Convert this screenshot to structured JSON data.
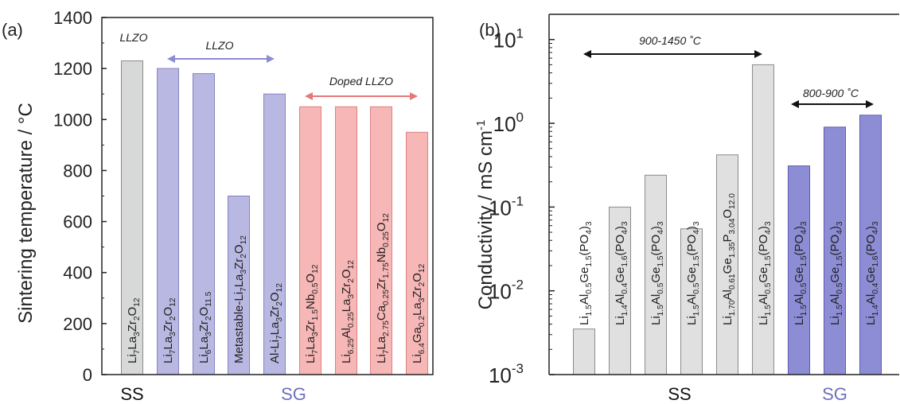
{
  "colors": {
    "gray_fill": "#d7d8d8",
    "gray_stroke": "#8a8b8b",
    "purple_fill": "#b9b8e2",
    "purple_stroke": "#8683c1",
    "red_fill": "#f8b7b7",
    "red_stroke": "#dc8181",
    "gray_b_fill": "#e0e0e0",
    "blue_b_fill": "#8d8dd6",
    "blue_b_stroke": "#5b5bb0",
    "lilac_arrow": "#8c8cd4",
    "red_arrow": "#e57878",
    "sg_text": "#6f6ebf"
  },
  "chart_data": [
    {
      "panel": "(a)",
      "type": "bar",
      "ylabel": "Sintering temperature / °C",
      "ylim": [
        0,
        1400
      ],
      "yticks": [
        "0",
        "200",
        "400",
        "600",
        "800",
        "1000",
        "1200",
        "1400"
      ],
      "categories": [
        {
          "base": "Li",
          "parts": [
            [
              "7",
              1
            ],
            [
              "La",
              0
            ],
            [
              "3",
              1
            ],
            [
              "Zr",
              0
            ],
            [
              "2",
              1
            ],
            [
              "O",
              0
            ],
            [
              "12",
              1
            ]
          ]
        },
        {
          "base": "Li",
          "parts": [
            [
              "7",
              1
            ],
            [
              "La",
              0
            ],
            [
              "3",
              1
            ],
            [
              "Zr",
              0
            ],
            [
              "2",
              1
            ],
            [
              "O",
              0
            ],
            [
              "12",
              1
            ]
          ]
        },
        {
          "base": "Li",
          "parts": [
            [
              "6",
              1
            ],
            [
              "La",
              0
            ],
            [
              "3",
              1
            ],
            [
              "Zr",
              0
            ],
            [
              "2",
              1
            ],
            [
              "O",
              0
            ],
            [
              "11.5",
              1
            ]
          ]
        },
        {
          "base": "Metastable-Li",
          "parts": [
            [
              "7",
              1
            ],
            [
              "La",
              0
            ],
            [
              "3",
              1
            ],
            [
              "Zr",
              0
            ],
            [
              "2",
              1
            ],
            [
              "O",
              0
            ],
            [
              "12",
              1
            ]
          ]
        },
        {
          "base": "Al-Li",
          "parts": [
            [
              "7",
              1
            ],
            [
              "La",
              0
            ],
            [
              "3",
              1
            ],
            [
              "Zr",
              0
            ],
            [
              "2",
              1
            ],
            [
              "O",
              0
            ],
            [
              "12",
              1
            ]
          ]
        },
        {
          "base": "Li",
          "parts": [
            [
              "7",
              1
            ],
            [
              "La",
              0
            ],
            [
              "3",
              1
            ],
            [
              "Zr",
              0
            ],
            [
              "1.5",
              1
            ],
            [
              "Nb",
              0
            ],
            [
              "0.5",
              1
            ],
            [
              "O",
              0
            ],
            [
              "12",
              1
            ]
          ]
        },
        {
          "base": "Li",
          "parts": [
            [
              "6.25",
              1
            ],
            [
              "Al",
              0
            ],
            [
              "0.25",
              1
            ],
            [
              "La",
              0
            ],
            [
              "3",
              1
            ],
            [
              "Zr",
              0
            ],
            [
              "2",
              1
            ],
            [
              "O",
              0
            ],
            [
              "12",
              1
            ]
          ]
        },
        {
          "base": "Li",
          "parts": [
            [
              "7",
              1
            ],
            [
              "La",
              0
            ],
            [
              "2.75",
              1
            ],
            [
              "Ca",
              0
            ],
            [
              "0.25",
              1
            ],
            [
              "Zr",
              0
            ],
            [
              "1.75",
              1
            ],
            [
              "Nb",
              0
            ],
            [
              "0.25",
              1
            ],
            [
              "O",
              0
            ],
            [
              "12",
              1
            ]
          ]
        },
        {
          "base": "Li",
          "parts": [
            [
              "6.4",
              1
            ],
            [
              "Ga",
              0
            ],
            [
              "0.2",
              1
            ],
            [
              "La",
              0
            ],
            [
              "3",
              1
            ],
            [
              "Zr",
              0
            ],
            [
              "2",
              1
            ],
            [
              "O",
              0
            ],
            [
              "12",
              1
            ]
          ]
        }
      ],
      "values": [
        1230,
        1200,
        1180,
        700,
        1100,
        1050,
        1050,
        1050,
        950
      ],
      "groups": [
        "gray",
        "purple",
        "purple",
        "purple",
        "purple",
        "red",
        "red",
        "red",
        "red"
      ],
      "annotations": {
        "top_label_1": "LLZO",
        "arrow_label_1": "LLZO",
        "arrow_label_2": "Doped LLZO"
      },
      "x_groups": [
        "SS",
        "SG"
      ]
    },
    {
      "panel": "(b)",
      "type": "bar",
      "yscale": "log",
      "ylabel": "Conductivity / mS cm",
      "ylabel_sup": "-1",
      "ylim": [
        0.001,
        20
      ],
      "yticks": [
        {
          "base": "10",
          "exp": "-3"
        },
        {
          "base": "10",
          "exp": "-2"
        },
        {
          "base": "10",
          "exp": "-1"
        },
        {
          "base": "10",
          "exp": "0"
        },
        {
          "base": "10",
          "exp": "1"
        }
      ],
      "categories": [
        {
          "base": "Li",
          "parts": [
            [
              "1.5",
              1
            ],
            [
              "Al",
              0
            ],
            [
              "0.5",
              1
            ],
            [
              "Ge",
              0
            ],
            [
              "1.5",
              1
            ],
            [
              "(PO",
              0
            ],
            [
              "4",
              1
            ],
            [
              ")",
              0
            ],
            [
              "3",
              1
            ]
          ]
        },
        {
          "base": "Li",
          "parts": [
            [
              "1.4",
              1
            ],
            [
              "Al",
              0
            ],
            [
              "0.4",
              1
            ],
            [
              "Ge",
              0
            ],
            [
              "1.6",
              1
            ],
            [
              "(PO",
              0
            ],
            [
              "4",
              1
            ],
            [
              ")",
              0
            ],
            [
              "3",
              1
            ]
          ]
        },
        {
          "base": "Li",
          "parts": [
            [
              "1.5",
              1
            ],
            [
              "Al",
              0
            ],
            [
              "0.5",
              1
            ],
            [
              "Ge",
              0
            ],
            [
              "1.5",
              1
            ],
            [
              "(PO",
              0
            ],
            [
              "4",
              1
            ],
            [
              ")",
              0
            ],
            [
              "3",
              1
            ]
          ]
        },
        {
          "base": "Li",
          "parts": [
            [
              "1.5",
              1
            ],
            [
              "Al",
              0
            ],
            [
              "0.5",
              1
            ],
            [
              "Ge",
              0
            ],
            [
              "1.5",
              1
            ],
            [
              "(PO",
              0
            ],
            [
              "4",
              1
            ],
            [
              ")",
              0
            ],
            [
              "3",
              1
            ]
          ]
        },
        {
          "base": "Li",
          "parts": [
            [
              "1.70",
              1
            ],
            [
              "Al",
              0
            ],
            [
              "0.61",
              1
            ],
            [
              "Ge",
              0
            ],
            [
              "1.35",
              1
            ],
            [
              "P",
              0
            ],
            [
              "3.04",
              1
            ],
            [
              "O",
              0
            ],
            [
              "12.0",
              1
            ]
          ]
        },
        {
          "base": "Li",
          "parts": [
            [
              "1.5",
              1
            ],
            [
              "Al",
              0
            ],
            [
              "0.5",
              1
            ],
            [
              "Ge",
              0
            ],
            [
              "1.5",
              1
            ],
            [
              "(PO",
              0
            ],
            [
              "4",
              1
            ],
            [
              ")",
              0
            ],
            [
              "3",
              1
            ]
          ]
        },
        {
          "base": "Li",
          "parts": [
            [
              "1.5",
              1
            ],
            [
              "Al",
              0
            ],
            [
              "0.5",
              1
            ],
            [
              "Ge",
              0
            ],
            [
              "1.5",
              1
            ],
            [
              "(PO",
              0
            ],
            [
              "4",
              1
            ],
            [
              ")",
              0
            ],
            [
              "3",
              1
            ]
          ]
        },
        {
          "base": "Li",
          "parts": [
            [
              "1.5",
              1
            ],
            [
              "Al",
              0
            ],
            [
              "0.5",
              1
            ],
            [
              "Ge",
              0
            ],
            [
              "1.5",
              1
            ],
            [
              "(PO",
              0
            ],
            [
              "4",
              1
            ],
            [
              ")",
              0
            ],
            [
              "3",
              1
            ]
          ]
        },
        {
          "base": "Li",
          "parts": [
            [
              "1.4",
              1
            ],
            [
              "Al",
              0
            ],
            [
              "0.4",
              1
            ],
            [
              "Ge",
              0
            ],
            [
              "1.6",
              1
            ],
            [
              "(PO",
              0
            ],
            [
              "4",
              1
            ],
            [
              ")",
              0
            ],
            [
              "3",
              1
            ]
          ]
        }
      ],
      "values": [
        0.0035,
        0.1,
        0.24,
        0.055,
        0.42,
        5.0,
        0.31,
        0.9,
        1.25
      ],
      "groups": [
        "gray",
        "gray",
        "gray",
        "gray",
        "gray",
        "gray",
        "blue",
        "blue",
        "blue"
      ],
      "annotations": {
        "arrow_label_1": "900-1450 ˚C",
        "arrow_label_2": "800-900 ˚C"
      },
      "x_groups": [
        "SS",
        "SG"
      ]
    }
  ]
}
